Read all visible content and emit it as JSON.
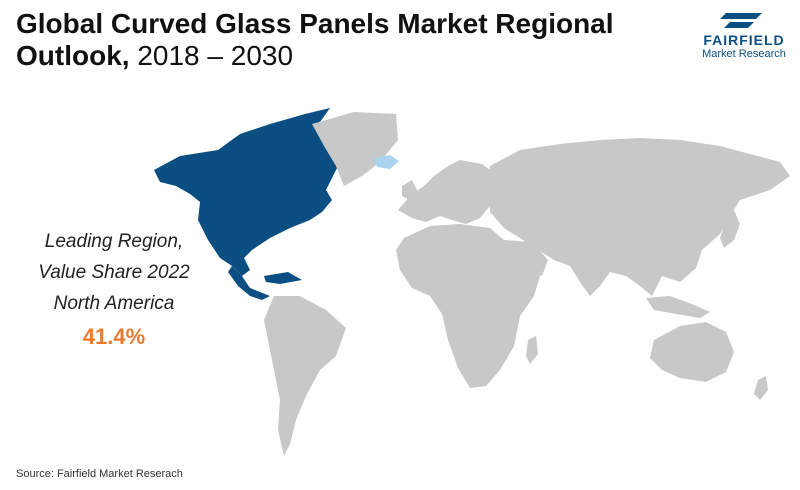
{
  "header": {
    "title_main": "Global Curved Glass Panels Market Regional Outlook,",
    "title_years": "2018 – 2030"
  },
  "logo": {
    "name": "FAIRFIELD",
    "subtitle": "Market Research"
  },
  "callout": {
    "line1": "Leading Region,",
    "line2": "Value Share 2022",
    "line3": "North America",
    "value": "41.4%"
  },
  "map": {
    "highlight_region": "North America",
    "highlight_color": "#0b4f82",
    "other_color": "#c8c8c8",
    "greenland_color": "#c8c8c8",
    "iceland_color": "#a9d3ef"
  },
  "colors": {
    "accent": "#ea7a2f",
    "brand": "#0b4f82"
  },
  "footer": {
    "source": "Source: Fairfield Market Reserach"
  }
}
